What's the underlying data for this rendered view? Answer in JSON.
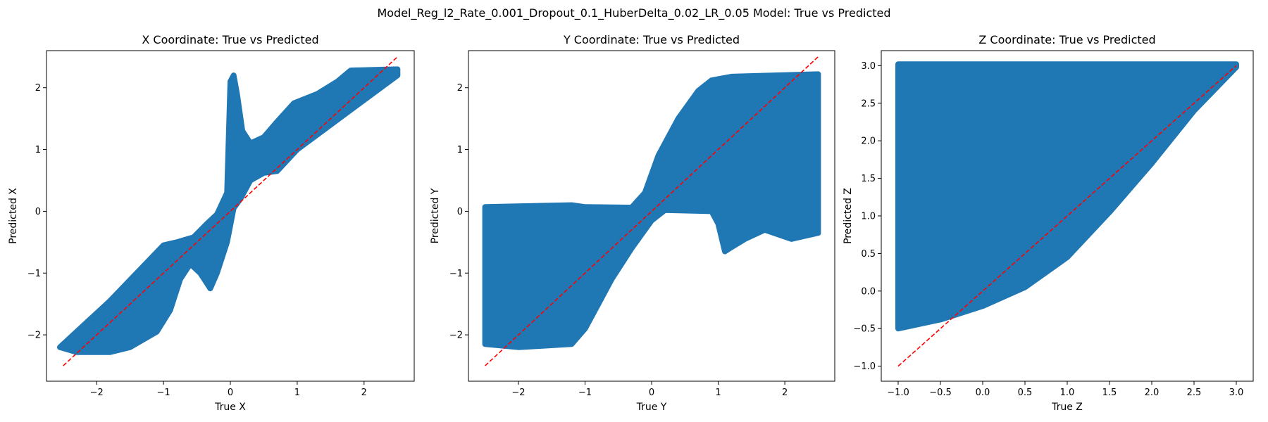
{
  "figure": {
    "suptitle": "Model_Reg_l2_Rate_0.001_Dropout_0.1_HuberDelta_0.02_LR_0.05 Model: True vs Predicted"
  },
  "colors": {
    "scatter": "#1f77b4",
    "reference_line": "#ff0000",
    "axes": "#000000",
    "background": "#ffffff"
  },
  "chart_data": [
    {
      "type": "scatter",
      "title": "X Coordinate: True vs Predicted",
      "xlabel": "True X",
      "ylabel": "Predicted X",
      "xlim": [
        -2.75,
        2.75
      ],
      "ylim": [
        -2.75,
        2.6
      ],
      "xticks": [
        -2,
        -1,
        0,
        1,
        2
      ],
      "yticks": [
        -2,
        -1,
        0,
        1,
        2
      ],
      "xtick_labels": [
        "−2",
        "−1",
        "0",
        "1",
        "2"
      ],
      "ytick_labels": [
        "−2",
        "−1",
        "0",
        "1",
        "2"
      ],
      "grid": false,
      "reference_line": {
        "style": "dashed",
        "x": [
          -2.5,
          2.5
        ],
        "y": [
          -2.5,
          2.5
        ]
      },
      "series": [
        {
          "marker": "circle",
          "alpha": 0.15,
          "region_upper": [
            [
              -2.5,
              -2.15
            ],
            [
              -2.2,
              -1.85
            ],
            [
              -1.8,
              -1.45
            ],
            [
              -1.4,
              -1.0
            ],
            [
              -1.0,
              -0.55
            ],
            [
              -0.8,
              -0.5
            ],
            [
              -0.55,
              -0.42
            ],
            [
              -0.35,
              -0.2
            ],
            [
              -0.2,
              -0.05
            ],
            [
              -0.05,
              0.3
            ],
            [
              0.0,
              2.1
            ],
            [
              0.05,
              2.2
            ],
            [
              0.1,
              1.9
            ],
            [
              0.18,
              1.3
            ],
            [
              0.3,
              1.1
            ],
            [
              0.5,
              1.2
            ],
            [
              0.7,
              1.45
            ],
            [
              0.95,
              1.75
            ],
            [
              1.3,
              1.9
            ],
            [
              1.6,
              2.1
            ],
            [
              1.8,
              2.28
            ],
            [
              2.5,
              2.3
            ]
          ],
          "region_lower": [
            [
              2.5,
              2.2
            ],
            [
              2.0,
              1.8
            ],
            [
              1.5,
              1.4
            ],
            [
              1.0,
              1.0
            ],
            [
              0.7,
              0.65
            ],
            [
              0.5,
              0.62
            ],
            [
              0.3,
              0.5
            ],
            [
              0.15,
              0.2
            ],
            [
              0.05,
              0.05
            ],
            [
              -0.05,
              -0.5
            ],
            [
              -0.2,
              -1.0
            ],
            [
              -0.3,
              -1.25
            ],
            [
              -0.45,
              -1.0
            ],
            [
              -0.6,
              -0.85
            ],
            [
              -0.75,
              -1.1
            ],
            [
              -0.9,
              -1.6
            ],
            [
              -1.1,
              -1.95
            ],
            [
              -1.5,
              -2.2
            ],
            [
              -1.8,
              -2.28
            ],
            [
              -2.3,
              -2.28
            ],
            [
              -2.55,
              -2.2
            ]
          ]
        }
      ]
    },
    {
      "type": "scatter",
      "title": "Y Coordinate: True vs Predicted",
      "xlabel": "True Y",
      "ylabel": "Predicted Y",
      "xlim": [
        -2.75,
        2.75
      ],
      "ylim": [
        -2.75,
        2.6
      ],
      "xticks": [
        -2,
        -1,
        0,
        1,
        2
      ],
      "yticks": [
        -2,
        -1,
        0,
        1,
        2
      ],
      "xtick_labels": [
        "−2",
        "−1",
        "0",
        "1",
        "2"
      ],
      "ytick_labels": [
        "−2",
        "−1",
        "0",
        "1",
        "2"
      ],
      "grid": false,
      "reference_line": {
        "style": "dashed",
        "x": [
          -2.5,
          2.5
        ],
        "y": [
          -2.5,
          2.5
        ]
      },
      "series": [
        {
          "marker": "circle",
          "alpha": 0.15,
          "region_upper": [
            [
              -2.5,
              0.07
            ],
            [
              -1.2,
              0.1
            ],
            [
              -1.0,
              0.07
            ],
            [
              -0.3,
              0.06
            ],
            [
              -0.1,
              0.3
            ],
            [
              0.1,
              0.9
            ],
            [
              0.4,
              1.5
            ],
            [
              0.7,
              1.95
            ],
            [
              0.9,
              2.12
            ],
            [
              1.2,
              2.18
            ],
            [
              2.5,
              2.22
            ]
          ],
          "region_lower": [
            [
              2.5,
              -0.35
            ],
            [
              2.1,
              -0.45
            ],
            [
              1.7,
              -0.3
            ],
            [
              1.4,
              -0.45
            ],
            [
              1.2,
              -0.58
            ],
            [
              1.1,
              -0.65
            ],
            [
              1.0,
              -0.2
            ],
            [
              0.9,
              0.0
            ],
            [
              0.2,
              0.02
            ],
            [
              0.0,
              -0.15
            ],
            [
              -0.3,
              -0.6
            ],
            [
              -0.6,
              -1.1
            ],
            [
              -0.8,
              -1.5
            ],
            [
              -1.0,
              -1.9
            ],
            [
              -1.2,
              -2.15
            ],
            [
              -2.0,
              -2.2
            ],
            [
              -2.5,
              -2.15
            ]
          ]
        }
      ]
    },
    {
      "type": "scatter",
      "title": "Z Coordinate: True vs Predicted",
      "xlabel": "True Z",
      "ylabel": "Predicted Z",
      "xlim": [
        -1.2,
        3.2
      ],
      "ylim": [
        -1.2,
        3.2
      ],
      "xticks": [
        -1.0,
        -0.5,
        0.0,
        0.5,
        1.0,
        1.5,
        2.0,
        2.5,
        3.0
      ],
      "yticks": [
        -1.0,
        -0.5,
        0.0,
        0.5,
        1.0,
        1.5,
        2.0,
        2.5,
        3.0
      ],
      "xtick_labels": [
        "−1.0",
        "−0.5",
        "0.0",
        "0.5",
        "1.0",
        "1.5",
        "2.0",
        "2.5",
        "3.0"
      ],
      "ytick_labels": [
        "−1.0",
        "−0.5",
        "0.0",
        "0.5",
        "1.0",
        "1.5",
        "2.0",
        "2.5",
        "3.0"
      ],
      "grid": false,
      "reference_line": {
        "style": "dashed",
        "x": [
          -1.0,
          3.0
        ],
        "y": [
          -1.0,
          3.0
        ]
      },
      "series": [
        {
          "marker": "circle",
          "alpha": 0.15,
          "region_upper": [
            [
              -1.0,
              3.02
            ],
            [
              3.0,
              3.02
            ]
          ],
          "region_lower": [
            [
              3.0,
              2.98
            ],
            [
              2.5,
              2.4
            ],
            [
              2.0,
              1.7
            ],
            [
              1.5,
              1.05
            ],
            [
              1.0,
              0.45
            ],
            [
              0.5,
              0.05
            ],
            [
              0.0,
              -0.2
            ],
            [
              -0.5,
              -0.38
            ],
            [
              -1.0,
              -0.5
            ]
          ]
        }
      ]
    }
  ]
}
